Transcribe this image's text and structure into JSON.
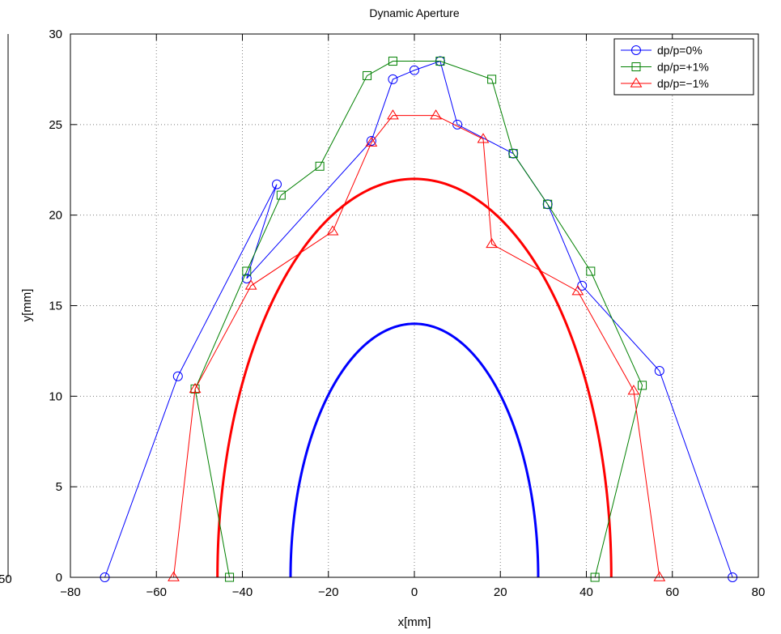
{
  "colors": {
    "series_blue": "#0000ff",
    "series_green": "#008000",
    "series_red": "#ff0000",
    "background": "#ffffff",
    "axes": "#000000",
    "grid": "#7f7f7f"
  },
  "chart_data": {
    "type": "line",
    "title": "Dynamic Aperture",
    "xlabel": "x[mm]",
    "ylabel": "y[mm]",
    "xlim": [
      -80,
      80
    ],
    "ylim": [
      0,
      30
    ],
    "xticks": [
      -80,
      -60,
      -40,
      -20,
      0,
      20,
      40,
      60,
      80
    ],
    "yticks": [
      0,
      5,
      10,
      15,
      20,
      25,
      30
    ],
    "xtick_labels": [
      "−80",
      "−60",
      "−40",
      "−20",
      "0",
      "20",
      "40",
      "60",
      "80"
    ],
    "ytick_labels": [
      "0",
      "5",
      "10",
      "15",
      "20",
      "25",
      "30"
    ],
    "grid": true,
    "legend_position": "top-right",
    "clipped_left_tick_fragment": "50",
    "series": [
      {
        "name": "dp/p=0%",
        "color": "#0000ff",
        "marker": "circle",
        "linewidth": 1,
        "x": [
          -72,
          -55,
          -32,
          -39,
          -10,
          -5,
          0,
          6,
          10,
          23,
          31,
          39,
          57,
          74
        ],
        "y": [
          0,
          11.1,
          21.7,
          16.5,
          24.1,
          27.5,
          28,
          28.5,
          25,
          23.4,
          20.6,
          16.1,
          11.4,
          0
        ]
      },
      {
        "name": "dp/p=+1%",
        "color": "#008000",
        "marker": "square",
        "linewidth": 1,
        "x": [
          -43,
          -51,
          -39,
          -31,
          -22,
          -11,
          -5,
          6,
          18,
          23,
          31,
          41,
          53,
          42
        ],
        "y": [
          0,
          10.4,
          16.9,
          21.1,
          22.7,
          27.7,
          28.5,
          28.5,
          27.5,
          23.4,
          20.6,
          16.9,
          10.6,
          0
        ]
      },
      {
        "name": "dp/p=−1%",
        "color": "#ff0000",
        "marker": "triangle",
        "linewidth": 1,
        "x": [
          -56,
          -51,
          -38,
          -19,
          -10,
          -5,
          5,
          16,
          18,
          38,
          51,
          57
        ],
        "y": [
          0,
          10.4,
          16.1,
          19.1,
          24,
          25.5,
          25.5,
          24.2,
          18.4,
          15.8,
          10.3,
          0
        ]
      }
    ],
    "reference_curves": [
      {
        "shape": "half-ellipse",
        "color": "#ff0000",
        "center_x": 0,
        "semi_axis_x": 45.8,
        "semi_axis_y": 22,
        "linewidth": 3
      },
      {
        "shape": "half-ellipse",
        "color": "#0000ff",
        "center_x": 0,
        "semi_axis_x": 28.8,
        "semi_axis_y": 14,
        "linewidth": 3
      }
    ]
  }
}
